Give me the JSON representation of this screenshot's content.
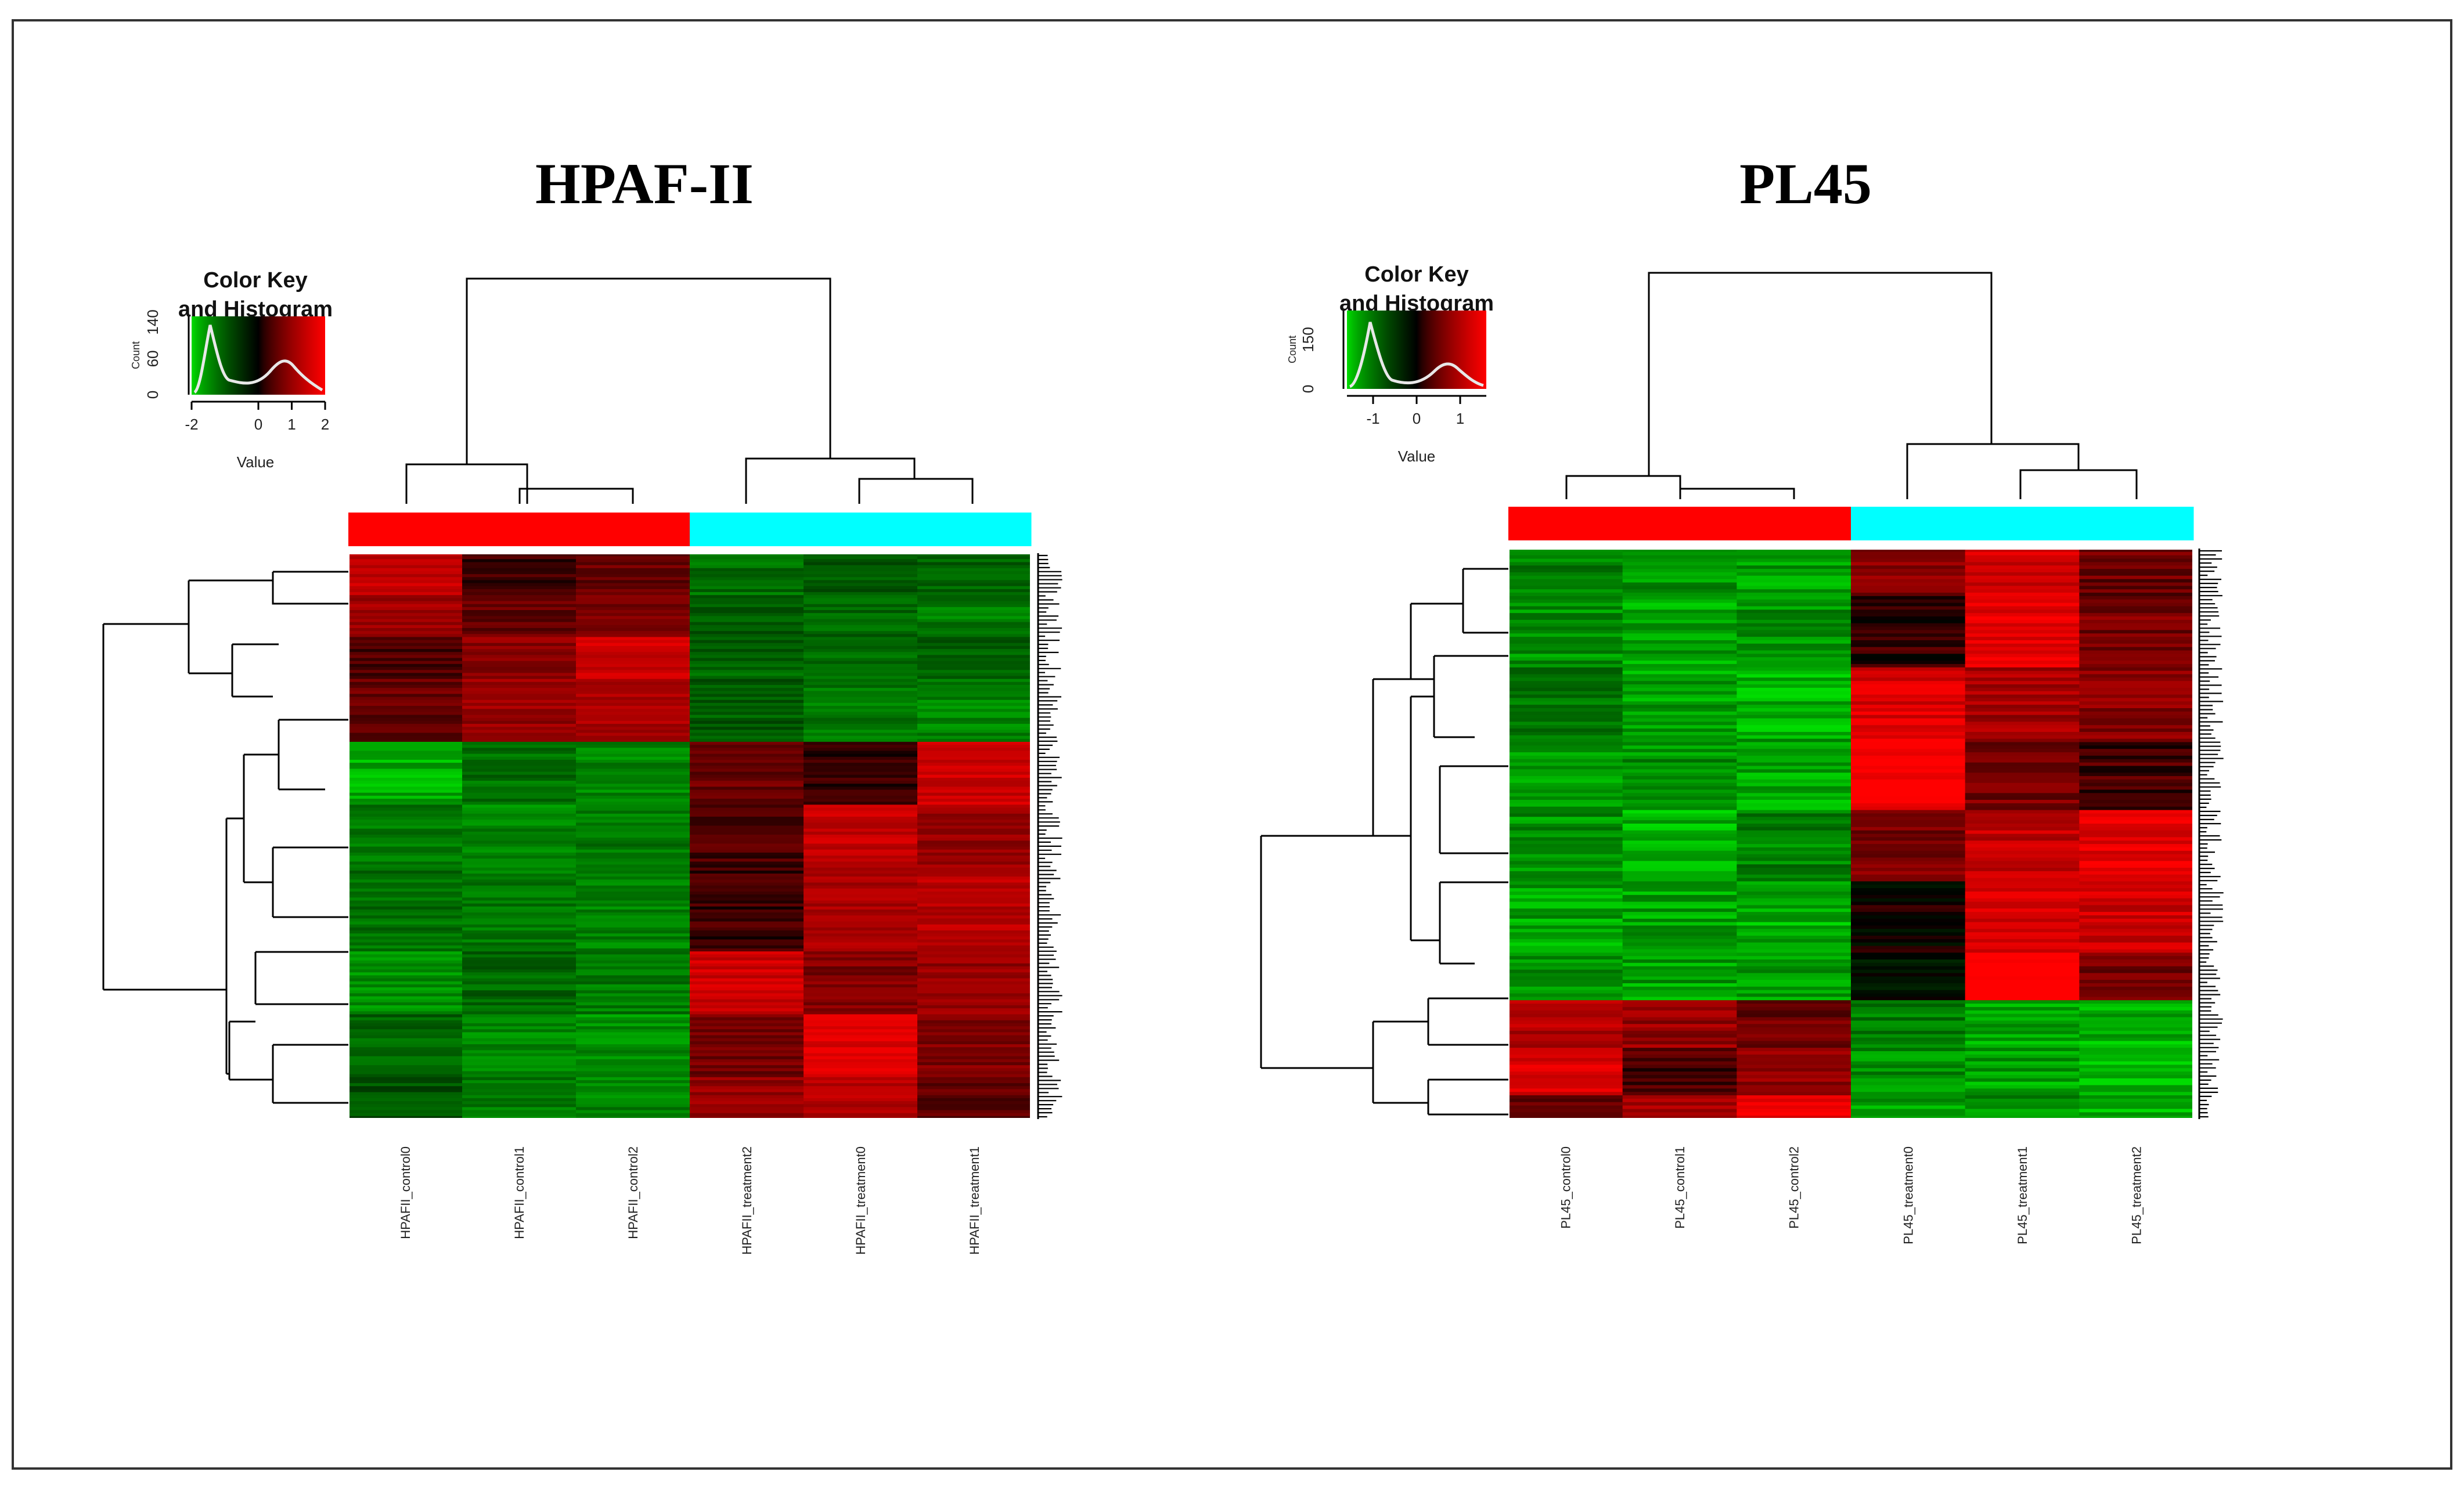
{
  "chart_data": [
    {
      "type": "heatmap",
      "title": "HPAF-II",
      "color_key": {
        "title": "Color Key",
        "subtitle": "and Histogram",
        "ylabel": "Count",
        "yticks": [
          "0",
          "60",
          "140"
        ],
        "xticks": [
          "-2",
          "0",
          "1",
          "2"
        ],
        "xlabel": "Value",
        "range": [
          -2,
          2
        ],
        "colors": {
          "low": "#00dd00",
          "mid": "#000000",
          "high": "#ff0000"
        }
      },
      "column_groups": [
        {
          "group": "control",
          "color": "#ff0000"
        },
        {
          "group": "control",
          "color": "#ff0000"
        },
        {
          "group": "control",
          "color": "#ff0000"
        },
        {
          "group": "treatment",
          "color": "#00ffff"
        },
        {
          "group": "treatment",
          "color": "#00ffff"
        },
        {
          "group": "treatment",
          "color": "#00ffff"
        }
      ],
      "columns": [
        "HPAFII_control0",
        "HPAFII_control1",
        "HPAFII_control2",
        "HPAFII_treatment2",
        "HPAFII_treatment0",
        "HPAFII_treatment1"
      ],
      "row_blocks": [
        {
          "weight": 2,
          "values": [
            1.4,
            0.3,
            0.6,
            -1.2,
            -1.0,
            -1.1
          ]
        },
        {
          "weight": 2,
          "values": [
            1.1,
            0.6,
            0.8,
            -1.0,
            -1.1,
            -1.3
          ]
        },
        {
          "weight": 2,
          "values": [
            0.4,
            0.9,
            1.5,
            -1.1,
            -1.2,
            -1.0
          ]
        },
        {
          "weight": 3,
          "values": [
            0.6,
            1.0,
            1.2,
            -1.0,
            -1.3,
            -1.4
          ]
        },
        {
          "weight": 3,
          "values": [
            -1.7,
            -1.2,
            -1.4,
            0.6,
            0.3,
            1.5
          ]
        },
        {
          "weight": 3,
          "values": [
            -1.3,
            -1.4,
            -1.3,
            0.4,
            1.4,
            1.0
          ]
        },
        {
          "weight": 4,
          "values": [
            -1.2,
            -1.3,
            -1.4,
            0.3,
            1.2,
            1.3
          ]
        },
        {
          "weight": 3,
          "values": [
            -1.5,
            -1.1,
            -1.3,
            1.5,
            0.8,
            1.0
          ]
        },
        {
          "weight": 3,
          "values": [
            -1.1,
            -1.4,
            -1.5,
            0.7,
            1.6,
            0.8
          ]
        },
        {
          "weight": 2,
          "values": [
            -0.9,
            -1.3,
            -1.4,
            1.0,
            1.3,
            0.5
          ]
        }
      ]
    },
    {
      "type": "heatmap",
      "title": "PL45",
      "color_key": {
        "title": "Color Key",
        "subtitle": "and Histogram",
        "ylabel": "Count",
        "yticks": [
          "0",
          "150"
        ],
        "xticks": [
          "-1",
          "0",
          "1"
        ],
        "xlabel": "Value",
        "range": [
          -1.6,
          1.6
        ],
        "colors": {
          "low": "#00dd00",
          "mid": "#000000",
          "high": "#ff0000"
        }
      },
      "column_groups": [
        {
          "group": "control",
          "color": "#ff0000"
        },
        {
          "group": "control",
          "color": "#ff0000"
        },
        {
          "group": "control",
          "color": "#ff0000"
        },
        {
          "group": "treatment",
          "color": "#00ffff"
        },
        {
          "group": "treatment",
          "color": "#00ffff"
        },
        {
          "group": "treatment",
          "color": "#00ffff"
        }
      ],
      "columns": [
        "PL45_control0",
        "PL45_control1",
        "PL45_control2",
        "PL45_treatment0",
        "PL45_treatment1",
        "PL45_treatment2"
      ],
      "row_blocks": [
        {
          "weight": 2,
          "values": [
            -1.1,
            -1.2,
            -1.3,
            0.7,
            1.2,
            0.5
          ]
        },
        {
          "weight": 3,
          "values": [
            -1.2,
            -1.3,
            -1.2,
            0.2,
            1.4,
            0.6
          ]
        },
        {
          "weight": 3,
          "values": [
            -1.0,
            -1.3,
            -1.4,
            1.3,
            0.9,
            0.7
          ]
        },
        {
          "weight": 3,
          "values": [
            -1.3,
            -1.2,
            -1.3,
            1.6,
            0.6,
            0.3
          ]
        },
        {
          "weight": 3,
          "values": [
            -1.2,
            -1.4,
            -1.1,
            0.6,
            1.1,
            1.4
          ]
        },
        {
          "weight": 3,
          "values": [
            -1.3,
            -1.3,
            -1.4,
            0.0,
            1.3,
            1.2
          ]
        },
        {
          "weight": 2,
          "values": [
            -1.2,
            -1.3,
            -1.3,
            -0.2,
            1.8,
            0.5
          ]
        },
        {
          "weight": 2,
          "values": [
            1.0,
            0.8,
            0.5,
            -1.1,
            -1.3,
            -1.4
          ]
        },
        {
          "weight": 2,
          "values": [
            1.3,
            0.3,
            0.7,
            -1.2,
            -1.3,
            -1.5
          ]
        },
        {
          "weight": 1,
          "values": [
            0.4,
            0.9,
            1.5,
            -1.3,
            -1.2,
            -1.4
          ]
        }
      ]
    }
  ]
}
